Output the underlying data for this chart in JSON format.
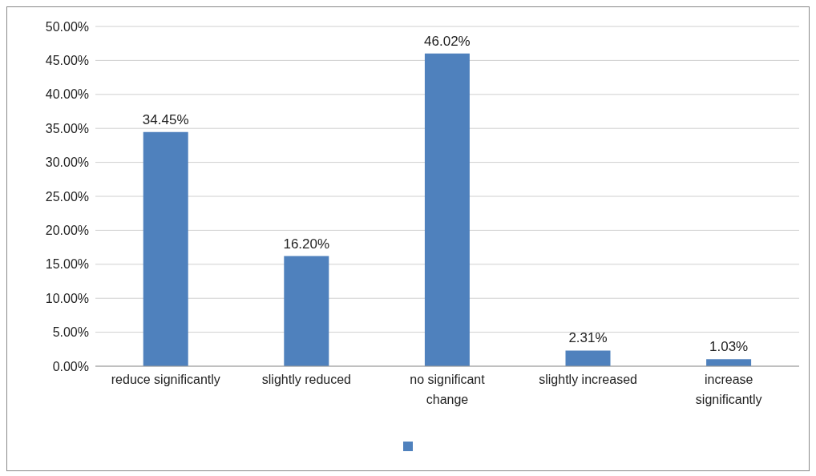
{
  "chart_data": {
    "type": "bar",
    "categories": [
      "reduce significantly",
      "slightly reduced",
      "no significant change",
      "slightly increased",
      "increase significantly"
    ],
    "series": [
      {
        "color": "#4f81bd",
        "values": [
          34.45,
          16.2,
          46.02,
          2.31,
          1.03
        ],
        "value_labels": [
          "34.45%",
          "16.20%",
          "46.02%",
          "2.31%",
          "1.03%"
        ]
      }
    ],
    "ylim": [
      0,
      50
    ],
    "yticks": [
      {
        "value": 0,
        "label": "0.00%"
      },
      {
        "value": 5,
        "label": "5.00%"
      },
      {
        "value": 10,
        "label": "10.00%"
      },
      {
        "value": 15,
        "label": "15.00%"
      },
      {
        "value": 20,
        "label": "20.00%"
      },
      {
        "value": 25,
        "label": "25.00%"
      },
      {
        "value": 30,
        "label": "30.00%"
      },
      {
        "value": 35,
        "label": "35.00%"
      },
      {
        "value": 40,
        "label": "40.00%"
      },
      {
        "value": 45,
        "label": "45.00%"
      },
      {
        "value": 50,
        "label": "50.00%"
      }
    ],
    "grid": "y"
  }
}
